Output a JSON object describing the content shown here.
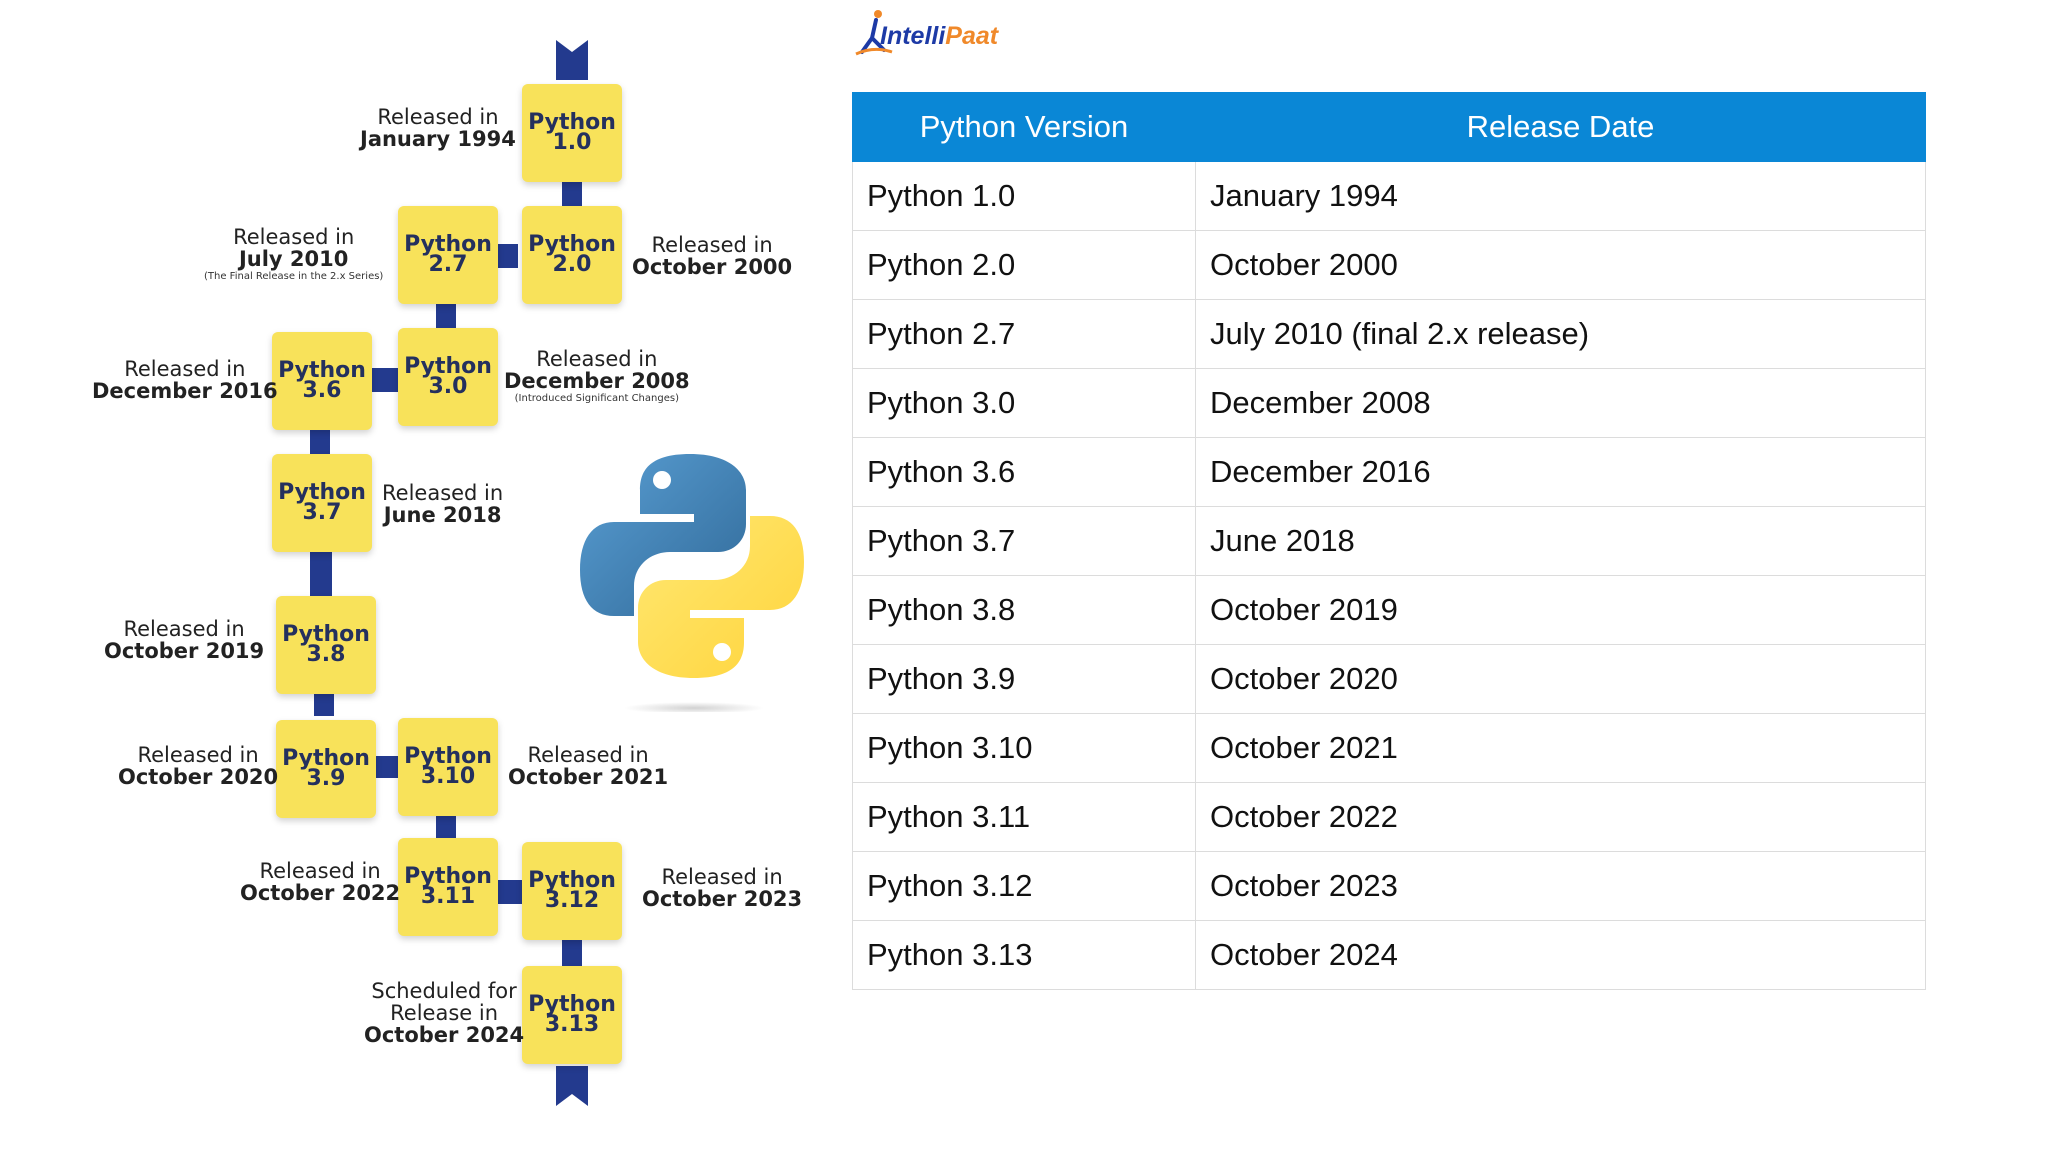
{
  "brand": {
    "logo_text": "IntelliPaat"
  },
  "timeline": [
    {
      "box": [
        "Python",
        "1.0"
      ],
      "label": [
        "Released in",
        "January 1994"
      ],
      "note": ""
    },
    {
      "box": [
        "Python",
        "2.0"
      ],
      "label": [
        "Released in",
        "October 2000"
      ],
      "note": ""
    },
    {
      "box": [
        "Python",
        "2.7"
      ],
      "label": [
        "Released in",
        "July 2010"
      ],
      "note": "(The Final Release in the 2.x Series)"
    },
    {
      "box": [
        "Python",
        "3.0"
      ],
      "label": [
        "Released in",
        "December 2008"
      ],
      "note": "(Introduced Significant Changes)"
    },
    {
      "box": [
        "Python",
        "3.6"
      ],
      "label": [
        "Released in",
        "December 2016"
      ],
      "note": ""
    },
    {
      "box": [
        "Python",
        "3.7"
      ],
      "label": [
        "Released in",
        "June 2018"
      ],
      "note": ""
    },
    {
      "box": [
        "Python",
        "3.8"
      ],
      "label": [
        "Released in",
        "October 2019"
      ],
      "note": ""
    },
    {
      "box": [
        "Python",
        "3.9"
      ],
      "label": [
        "Released in",
        "October 2020"
      ],
      "note": ""
    },
    {
      "box": [
        "Python",
        "3.10"
      ],
      "label": [
        "Released in",
        "October 2021"
      ],
      "note": ""
    },
    {
      "box": [
        "Python",
        "3.11"
      ],
      "label": [
        "Released in",
        "October 2022"
      ],
      "note": ""
    },
    {
      "box": [
        "Python",
        "3.12"
      ],
      "label": [
        "Released in",
        "October 2023"
      ],
      "note": ""
    },
    {
      "box": [
        "Python",
        "3.13"
      ],
      "label": [
        "Scheduled for",
        "Release in",
        "October 2024"
      ],
      "note": ""
    }
  ],
  "table": {
    "headers": [
      "Python Version",
      "Release Date"
    ],
    "rows": [
      [
        "Python 1.0",
        "January 1994"
      ],
      [
        "Python 2.0",
        "October 2000"
      ],
      [
        "Python 2.7",
        "July 2010 (final 2.x release)"
      ],
      [
        "Python 3.0",
        "December 2008"
      ],
      [
        "Python 3.6",
        "December 2016"
      ],
      [
        "Python 3.7",
        "June 2018"
      ],
      [
        "Python 3.8",
        "October 2019"
      ],
      [
        "Python 3.9",
        "October 2020"
      ],
      [
        "Python 3.10",
        "October 2021"
      ],
      [
        "Python 3.11",
        "October 2022"
      ],
      [
        "Python 3.12",
        "October 2023"
      ],
      [
        "Python 3.13",
        "October 2024"
      ]
    ]
  },
  "colors": {
    "header_bg": "#0a87d6",
    "box_fill": "#f8e25a",
    "connector": "#233a8e",
    "python_blue": "#3b76ab",
    "python_yellow": "#f9d340"
  }
}
